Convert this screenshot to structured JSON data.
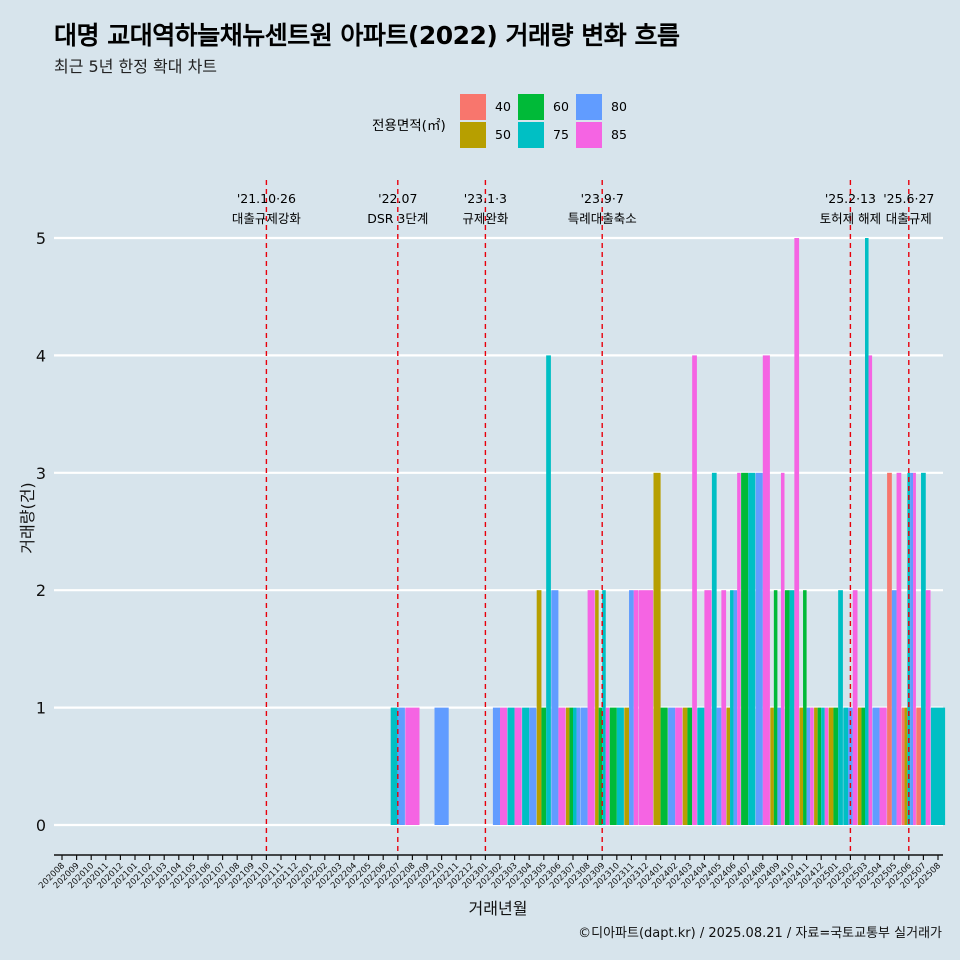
{
  "title": "대명 교대역하늘채뉴센트원 아파트(2022) 거래량 변화 흐름",
  "subtitle": "최근 5년 한정 확대 차트",
  "caption": "©디아파트(dapt.kr) / 2025.08.21 / 자료=국토교통부 실거래가",
  "legend": {
    "title": "전용면적(㎡)",
    "items": [
      {
        "label": "40",
        "color": "#F8766D"
      },
      {
        "label": "50",
        "color": "#B79F00"
      },
      {
        "label": "60",
        "color": "#00BA38"
      },
      {
        "label": "75",
        "color": "#00BFC4"
      },
      {
        "label": "80",
        "color": "#619CFF"
      },
      {
        "label": "85",
        "color": "#F564E3"
      }
    ]
  },
  "chart_data": {
    "type": "bar",
    "xlabel": "거래년월",
    "ylabel": "거래량(건)",
    "ylim": [
      0,
      5
    ],
    "yticks": [
      0,
      1,
      2,
      3,
      4,
      5
    ],
    "grid": true,
    "legend_position": "top",
    "categories": [
      "202008",
      "202009",
      "202010",
      "202011",
      "202012",
      "202101",
      "202102",
      "202103",
      "202104",
      "202105",
      "202106",
      "202107",
      "202108",
      "202109",
      "202110",
      "202111",
      "202112",
      "202201",
      "202202",
      "202203",
      "202204",
      "202205",
      "202206",
      "202207",
      "202208",
      "202209",
      "202210",
      "202211",
      "202212",
      "202301",
      "202302",
      "202303",
      "202304",
      "202305",
      "202306",
      "202307",
      "202308",
      "202309",
      "202310",
      "202311",
      "202312",
      "202401",
      "202402",
      "202403",
      "202404",
      "202405",
      "202406",
      "202407",
      "202408",
      "202409",
      "202410",
      "202411",
      "202412",
      "202501",
      "202502",
      "202503",
      "202504",
      "202505",
      "202506",
      "202507",
      "202508"
    ],
    "series": [
      {
        "name": "40",
        "color": "#F8766D",
        "values": {
          "202505": 3,
          "202506": 1,
          "202507": 1
        }
      },
      {
        "name": "50",
        "color": "#B79F00",
        "values": {
          "202305": 2,
          "202307": 1,
          "202309": 2,
          "202311": 1,
          "202401": 3,
          "202403": 1,
          "202406": 1,
          "202409": 1,
          "202411": 1,
          "202412": 1,
          "202501": 1,
          "202503": 1,
          "202506": 1
        }
      },
      {
        "name": "60",
        "color": "#00BA38",
        "values": {
          "202305": 1,
          "202307": 1,
          "202309": 1,
          "202310": 1,
          "202401": 1,
          "202403": 1,
          "202407": 3,
          "202409": 2,
          "202410": 2,
          "202411": 2,
          "202412": 1,
          "202501": 1,
          "202503": 1
        }
      },
      {
        "name": "75",
        "color": "#00BFC4",
        "values": {
          "202207": 1,
          "202303": 1,
          "202304": 1,
          "202305": 4,
          "202307": 1,
          "202309": 2,
          "202310": 1,
          "202404": 1,
          "202405": 3,
          "202406": 2,
          "202407": 3,
          "202410": 2,
          "202412": 1,
          "202501": 2,
          "202502": 1,
          "202503": 5,
          "202506": 3,
          "202507": 3,
          "202508": 1
        }
      },
      {
        "name": "80",
        "color": "#619CFF",
        "values": {
          "202207": 1,
          "202210": 1,
          "202302": 1,
          "202304": 1,
          "202306": 2,
          "202307": 1,
          "202308": 1,
          "202311": 2,
          "202402": 1,
          "202405": 1,
          "202406": 2,
          "202408": 3,
          "202409": 1,
          "202411": 1,
          "202502": 1,
          "202504": 1,
          "202505": 2,
          "202506": 3
        }
      },
      {
        "name": "85",
        "color": "#F564E3",
        "values": {
          "202208": 1,
          "202302": 1,
          "202303": 1,
          "202306": 1,
          "202308": 2,
          "202309": 1,
          "202311": 2,
          "202312": 2,
          "202402": 1,
          "202403": 4,
          "202404": 2,
          "202405": 2,
          "202406": 3,
          "202408": 4,
          "202409": 3,
          "202410": 5,
          "202411": 1,
          "202412": 1,
          "202502": 2,
          "202503": 4,
          "202504": 1,
          "202505": 3,
          "202506": 3,
          "202507": 2
        }
      }
    ],
    "events": [
      {
        "date": "'21.10·26",
        "label": "대출규제강화",
        "month": "202110"
      },
      {
        "date": "'22.07",
        "label": "DSR 3단계",
        "month": "202207"
      },
      {
        "date": "'23.1·3",
        "label": "규제완화",
        "month": "202301"
      },
      {
        "date": "'23.9·7",
        "label": "특례대출축소",
        "month": "202309"
      },
      {
        "date": "'25.2·13",
        "label": "토허제 해제",
        "month": "202502"
      },
      {
        "date": "'25.6·27",
        "label": "대출규제",
        "month": "202506"
      }
    ]
  }
}
